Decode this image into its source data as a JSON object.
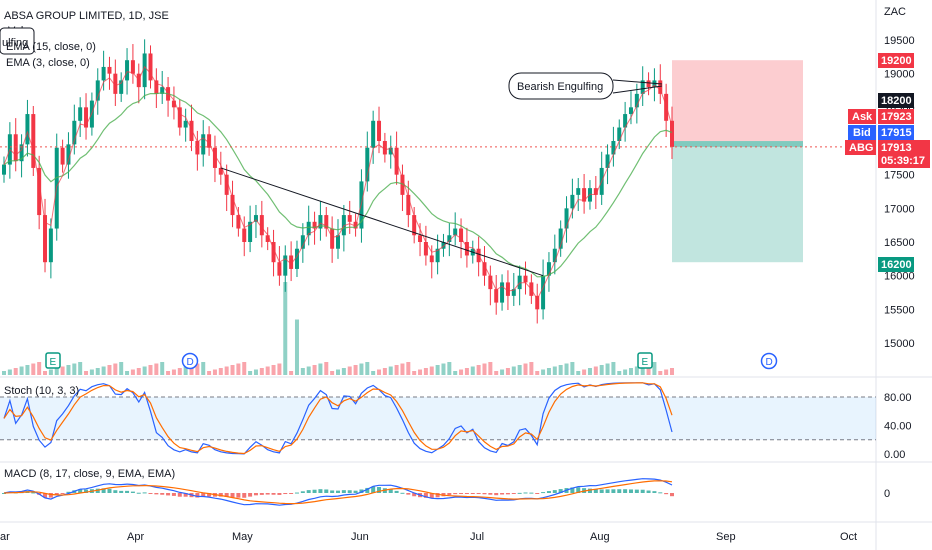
{
  "header": {
    "title": "ABSA GROUP LIMITED, 1D, JSE",
    "vol_label": "Vol",
    "indicator_popup": "ulfing",
    "ema15_label": "EMA (15, close, 0)",
    "ema3_label": "EMA (3, close, 0)",
    "stoch_label": "Stoch (10, 3, 3)",
    "macd_label": "MACD (8, 17, close, 9, EMA, EMA)"
  },
  "annotation": {
    "text": "Bearish Engulfing"
  },
  "currency": "ZAC",
  "price_tags": {
    "target": "19200",
    "level": "18200",
    "ask_label": "Ask",
    "ask": "17923",
    "bid_label": "Bid",
    "bid": "17915",
    "symbol": "ABG",
    "last": "17913",
    "countdown": "05:39:17",
    "stop": "16200"
  },
  "event_markers": [
    {
      "label": "E",
      "month": "Apr"
    },
    {
      "label": "D",
      "month": "May"
    },
    {
      "label": "E",
      "month": "Aug"
    },
    {
      "label": "D",
      "month": "Sep"
    }
  ],
  "chart_data": {
    "type": "candlestick",
    "title": "ABSA GROUP LIMITED, 1D, JSE",
    "unit": "ZAC",
    "x_ticks": [
      "ar",
      "Apr",
      "May",
      "Jun",
      "Jul",
      "Aug",
      "Sep",
      "Oct"
    ],
    "y_ticks": [
      15000,
      15500,
      16000,
      16500,
      17000,
      17500,
      18000,
      18500,
      19000,
      19500
    ],
    "ylim": [
      14800,
      19700
    ],
    "close_series": [
      17650,
      18100,
      17700,
      17950,
      18400,
      17600,
      16900,
      16200,
      16700,
      17900,
      17650,
      17950,
      18300,
      18500,
      18200,
      18600,
      18900,
      19100,
      19000,
      18700,
      18900,
      19200,
      19000,
      18800,
      19300,
      18900,
      18700,
      18800,
      18600,
      18500,
      18200,
      18300,
      18000,
      17800,
      18100,
      17900,
      17600,
      17500,
      17200,
      16900,
      16700,
      16500,
      16800,
      16900,
      16600,
      16500,
      16200,
      16000,
      16300,
      16100,
      16400,
      16600,
      16800,
      16700,
      16900,
      16700,
      16400,
      16600,
      16900,
      16800,
      16700,
      17400,
      17900,
      18300,
      18000,
      17800,
      17900,
      17500,
      17200,
      16900,
      16600,
      16500,
      16300,
      16200,
      16400,
      16500,
      16600,
      16700,
      16500,
      16300,
      16400,
      16200,
      16000,
      15800,
      15600,
      15900,
      15700,
      15800,
      16000,
      15900,
      15700,
      15500,
      16000,
      16200,
      16400,
      16700,
      17000,
      17200,
      17300,
      17100,
      17300,
      17200,
      17600,
      17800,
      18000,
      18200,
      18400,
      18500,
      18700,
      18900,
      18800,
      18900,
      18700,
      18300,
      17913
    ],
    "ema15_visible": true,
    "ema3_visible": true,
    "trendline": {
      "from_close": 17600,
      "to_close": 16000
    },
    "position": {
      "entry": 17913,
      "target": 19200,
      "stop": 16200,
      "level": 18200
    },
    "stoch": {
      "params": "10, 3, 3",
      "levels": [
        80,
        20
      ],
      "y_ticks": [
        "80.00",
        "40.00",
        "0.00"
      ]
    },
    "macd": {
      "params": "8, 17, close, 9, EMA, EMA",
      "y_ticks": [
        "0"
      ]
    }
  }
}
